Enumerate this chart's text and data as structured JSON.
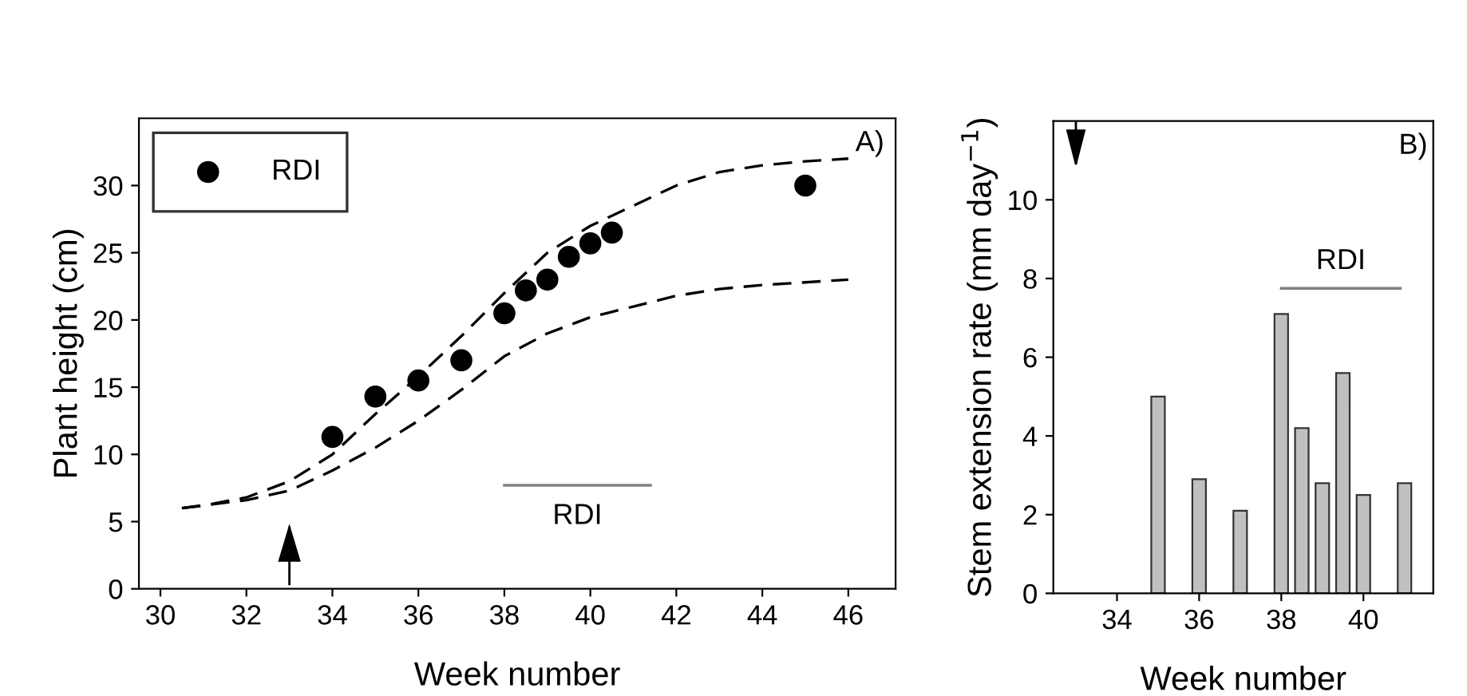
{
  "chart_data": [
    {
      "type": "line",
      "xlabel": "Week number",
      "ylabel": "Plant height (cm)",
      "xlim": [
        29.5,
        47.1
      ],
      "ylim": [
        0,
        35
      ],
      "xticks": [
        30,
        32,
        34,
        36,
        38,
        40,
        42,
        44,
        46
      ],
      "yticks": [
        0,
        5,
        10,
        15,
        20,
        25,
        30
      ],
      "grid": false,
      "legend": "top left",
      "series": [
        {
          "type": "scatter",
          "name": "RDI",
          "color": "#000000",
          "marker": "circle",
          "x": [
            34,
            35,
            36,
            37,
            38,
            38.5,
            39,
            39.5,
            40,
            40.5,
            45
          ],
          "values": [
            11.3,
            14.3,
            15.5,
            17,
            20.5,
            22.2,
            23,
            24.7,
            25.7,
            26.5,
            30
          ]
        },
        {
          "type": "line",
          "color": "#000000",
          "line_style": "dashed",
          "x": [
            30.5,
            31,
            32,
            33,
            34,
            35,
            36,
            37,
            38,
            39,
            40,
            41,
            42,
            43,
            44,
            45,
            46
          ],
          "values": [
            6,
            6.2,
            6.8,
            8,
            10,
            13,
            15.8,
            18.8,
            22,
            25,
            27,
            28.5,
            30,
            31,
            31.5,
            31.8,
            32
          ]
        },
        {
          "type": "line",
          "color": "#000000",
          "line_style": "dashed",
          "x": [
            30.5,
            31,
            32,
            33,
            34,
            35,
            36,
            37,
            38,
            39,
            40,
            41,
            42,
            43,
            44,
            45,
            46
          ],
          "values": [
            6,
            6.2,
            6.6,
            7.3,
            8.8,
            10.5,
            12.5,
            14.8,
            17.3,
            19,
            20.2,
            21,
            21.8,
            22.3,
            22.6,
            22.8,
            23
          ]
        },
        {
          "type": "line",
          "name": "RDI",
          "color": "#808080",
          "line_style": "solid",
          "x": [
            38,
            41.4
          ],
          "values": [
            7.7,
            7.7
          ]
        }
      ],
      "ref_lines": [
        {
          "axis": "x",
          "value": 33,
          "color": "#000000"
        }
      ],
      "annotations": [
        "A)"
      ]
    },
    {
      "type": "bar",
      "xlabel": "Week number",
      "ylabel": "Stem extension rate (mm day$^{−1}$)",
      "xlim": [
        32.45,
        41.7
      ],
      "ylim": [
        0,
        12
      ],
      "xticks": [
        34,
        36,
        38,
        40
      ],
      "yticks": [
        0,
        2,
        4,
        6,
        8,
        10
      ],
      "grid": false,
      "series": [
        {
          "type": "bar",
          "color": "#c0c0c0",
          "x": [
            35,
            36,
            37,
            38,
            38.5,
            39,
            39.5,
            40,
            41
          ],
          "values": [
            5,
            2.9,
            2.1,
            7.1,
            4.2,
            2.8,
            5.6,
            2.5,
            2.8
          ]
        },
        {
          "type": "line",
          "name": "RDI",
          "color": "#808080",
          "line_style": "solid",
          "x": [
            38,
            40.9
          ],
          "values": [
            7.75,
            7.75
          ]
        }
      ],
      "ref_lines": [
        {
          "axis": "x",
          "value": 33,
          "color": "#000000"
        }
      ],
      "annotations": [
        "B)"
      ]
    }
  ]
}
